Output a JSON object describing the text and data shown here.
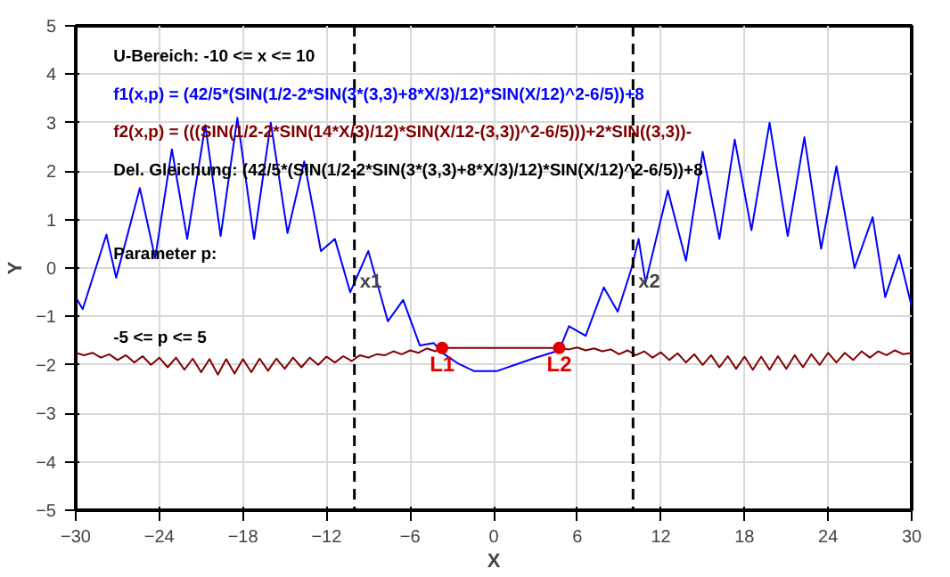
{
  "chart_data": {
    "type": "line",
    "xlabel": "X",
    "ylabel": "Y",
    "xlim": [
      -30,
      30
    ],
    "ylim": [
      -5,
      5
    ],
    "xticks": [
      -30,
      -24,
      -18,
      -12,
      -6,
      0,
      6,
      12,
      18,
      24,
      30
    ],
    "yticks": [
      -5,
      -4,
      -3,
      -2,
      -1,
      0,
      1,
      2,
      3,
      4,
      5
    ],
    "grid": true,
    "legend": "top left",
    "line_style": "solid",
    "marker": "none",
    "series": [
      {
        "name": "f1(x,p) = (42/5*(SIN(1/2-2*SIN(3*(3,3)+8*X/3)/12)*SIN(X/12)^2-6/5))+8",
        "color": "#0000ff",
        "x": [
          -30,
          -29.5,
          -27.8,
          -27.1,
          -25.4,
          -24.3,
          -23.1,
          -22.0,
          -20.7,
          -19.6,
          -18.4,
          -17.2,
          -16.0,
          -14.8,
          -13.6,
          -12.4,
          -11.4,
          -10.3,
          -9.0,
          -7.6,
          -6.5,
          -5.3,
          -4.3,
          -3.7,
          -2.5,
          -1.4,
          0.2,
          2.9,
          4.7,
          5.4,
          6.6,
          7.9,
          8.9,
          9.9,
          10.4,
          10.9,
          12.5,
          13.8,
          15.0,
          16.2,
          17.3,
          18.5,
          19.8,
          21.1,
          22.3,
          23.5,
          24.6,
          25.9,
          27.2,
          28.1,
          29.1,
          30
        ],
        "values": [
          -0.6,
          -0.85,
          0.69,
          -0.2,
          1.65,
          0.2,
          2.45,
          0.6,
          2.95,
          0.66,
          3.1,
          0.6,
          3.0,
          0.72,
          2.2,
          0.35,
          0.6,
          -0.5,
          0.35,
          -1.1,
          -0.66,
          -1.6,
          -1.55,
          -1.75,
          -1.98,
          -2.13,
          -2.13,
          -1.86,
          -1.7,
          -1.2,
          -1.4,
          -0.4,
          -0.9,
          0.0,
          0.6,
          -0.3,
          1.6,
          0.15,
          2.4,
          0.6,
          2.65,
          0.78,
          3.0,
          0.66,
          2.7,
          0.4,
          2.1,
          0.0,
          1.05,
          -0.6,
          0.27,
          -0.8
        ]
      },
      {
        "name": "f2(x,p) = (((SIN(1/2-2*SIN(14*X/3)/12)*SIN(X/12-(3,3))^2-6/5)))+2*SIN((3,3))-",
        "color": "#800000",
        "x": [
          -30,
          -29.4,
          -28.8,
          -28.2,
          -27.6,
          -27.0,
          -26.4,
          -25.8,
          -25.2,
          -24.6,
          -24.0,
          -23.4,
          -22.8,
          -22.2,
          -21.6,
          -21.0,
          -20.4,
          -19.8,
          -19.2,
          -18.6,
          -18.0,
          -17.4,
          -16.8,
          -16.2,
          -15.6,
          -15.0,
          -14.4,
          -13.8,
          -13.2,
          -12.6,
          -12.0,
          -11.4,
          -10.8,
          -10.2,
          -9.6,
          -9.0,
          -8.4,
          -7.8,
          -7.2,
          -6.6,
          -6.0,
          -5.4,
          -4.8,
          -4.2,
          -3.7,
          4.7,
          5.4,
          6.0,
          6.6,
          7.2,
          7.8,
          8.4,
          9.0,
          9.6,
          10.2,
          10.8,
          11.4,
          12.0,
          12.6,
          13.2,
          13.8,
          14.4,
          15.0,
          15.6,
          16.2,
          16.8,
          17.4,
          18.0,
          18.6,
          19.2,
          19.8,
          20.4,
          21.0,
          21.6,
          22.2,
          22.8,
          23.4,
          24.0,
          24.6,
          25.2,
          25.8,
          26.4,
          27.0,
          27.6,
          28.2,
          28.8,
          29.4,
          30
        ],
        "values": [
          -1.75,
          -1.8,
          -1.75,
          -1.85,
          -1.78,
          -1.9,
          -1.8,
          -1.95,
          -1.82,
          -2.0,
          -1.85,
          -2.05,
          -1.85,
          -2.1,
          -1.87,
          -2.15,
          -1.88,
          -2.2,
          -1.88,
          -2.18,
          -1.88,
          -2.15,
          -1.87,
          -2.12,
          -1.87,
          -2.08,
          -1.85,
          -2.05,
          -1.85,
          -2.0,
          -1.83,
          -1.95,
          -1.82,
          -1.92,
          -1.8,
          -1.85,
          -1.78,
          -1.8,
          -1.72,
          -1.78,
          -1.7,
          -1.75,
          -1.66,
          -1.72,
          -1.65,
          -1.65,
          -1.68,
          -1.64,
          -1.7,
          -1.66,
          -1.72,
          -1.68,
          -1.78,
          -1.7,
          -1.8,
          -1.72,
          -1.85,
          -1.74,
          -1.9,
          -1.76,
          -1.95,
          -1.78,
          -2.0,
          -1.8,
          -2.05,
          -1.82,
          -2.08,
          -1.83,
          -2.1,
          -1.83,
          -2.1,
          -1.82,
          -2.08,
          -1.8,
          -2.05,
          -1.78,
          -2.0,
          -1.75,
          -1.95,
          -1.75,
          -1.9,
          -1.72,
          -1.85,
          -1.72,
          -1.8,
          -1.7,
          -1.78,
          -1.75
        ]
      }
    ],
    "ref_lines": [
      {
        "axis": "x",
        "value": -10,
        "label": "x1",
        "color": "#000000",
        "line_style": "dashed"
      },
      {
        "axis": "x",
        "value": 10,
        "label": "x2",
        "color": "#000000",
        "line_style": "dashed"
      }
    ],
    "annotations": [
      "U-Bereich: -10 <= x <= 10",
      "Del. Gleichung: (42/5*(SIN(1/2-2*SIN(3*(3,3)+8*X/3)/12)*SIN(X/12)^2-6/5))+8",
      "Parameter p:",
      "-5 <= p <= 5",
      {
        "text": "L1",
        "x": -3.7,
        "y": -1.65
      },
      {
        "text": "L2",
        "x": 4.7,
        "y": -1.65
      }
    ]
  }
}
